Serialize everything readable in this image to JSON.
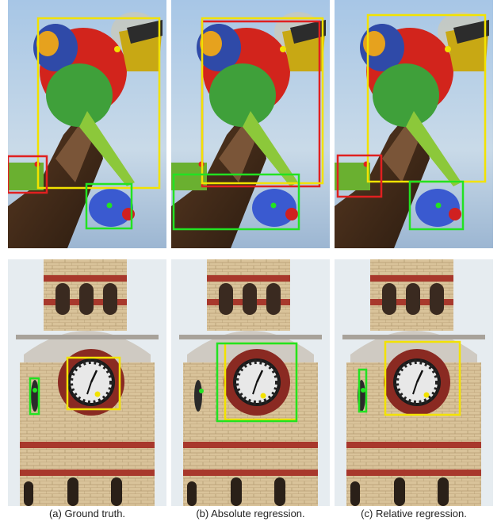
{
  "figure": {
    "captions": [
      "(a) Ground truth.",
      "(b) Absolute regression.",
      "(c) Relative regression."
    ]
  },
  "colors": {
    "box_yellow": "#f2e200",
    "box_red": "#e02020",
    "box_green": "#22e222",
    "sky": "#aac8e4",
    "tower_sky": "#e8eef2"
  }
}
